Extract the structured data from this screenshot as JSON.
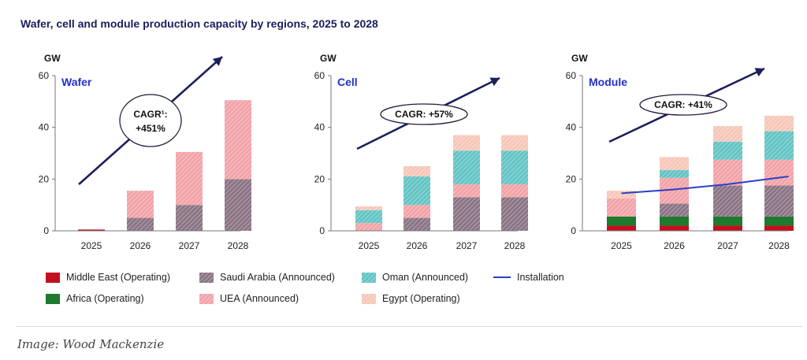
{
  "title": "Wafer, cell and module production capacity by regions, 2025 to 2028",
  "caption": "Image: Wood Mackenzie",
  "legend": [
    {
      "key": "middle_east",
      "label": "Middle East (Operating)"
    },
    {
      "key": "saudi_arabia",
      "label": "Saudi Arabia (Announced)"
    },
    {
      "key": "oman",
      "label": "Oman (Announced)"
    },
    {
      "key": "installation",
      "label": "Installation"
    },
    {
      "key": "africa",
      "label": "Africa (Operating)"
    },
    {
      "key": "uea",
      "label": "UEA (Announced)"
    },
    {
      "key": "egypt",
      "label": "Egypt (Operating)"
    }
  ],
  "colors": {
    "middle_east": "#c40f1e",
    "africa": "#1e7a2e",
    "saudi_arabia": "#8a7384",
    "uea": "#f2a3a8",
    "oman": "#63c4c4",
    "egypt": "#f6c7b8",
    "installation": "#2b3fc9",
    "arrow": "#1a1f5c",
    "title": "#1a1f5c",
    "panel_label": "#2231c8"
  },
  "chart_data": [
    {
      "type": "bar",
      "stacked": true,
      "panel": "Wafer",
      "ylabel": "GW",
      "ylim": [
        0,
        60
      ],
      "yticks": [
        "0",
        "20",
        "40",
        "60"
      ],
      "categories": [
        "2025",
        "2026",
        "2027",
        "2028"
      ],
      "cagr_label_line1": "CAGR¹:",
      "cagr_label_line2": "+451%",
      "series": [
        {
          "key": "middle_east",
          "name": "Middle East (Operating)",
          "values": [
            0.5,
            0,
            0,
            0
          ]
        },
        {
          "key": "africa",
          "name": "Africa (Operating)",
          "values": [
            0,
            0,
            0,
            0
          ]
        },
        {
          "key": "saudi_arabia",
          "name": "Saudi Arabia (Announced)",
          "values": [
            0,
            5,
            10,
            20
          ]
        },
        {
          "key": "uea",
          "name": "UEA (Announced)",
          "values": [
            0,
            10.5,
            20.5,
            30.5
          ]
        },
        {
          "key": "oman",
          "name": "Oman (Announced)",
          "values": [
            0,
            0,
            0,
            0
          ]
        },
        {
          "key": "egypt",
          "name": "Egypt (Operating)",
          "values": [
            0,
            0,
            0,
            0
          ]
        }
      ],
      "installation": null
    },
    {
      "type": "bar",
      "stacked": true,
      "panel": "Cell",
      "ylabel": "GW",
      "ylim": [
        0,
        60
      ],
      "yticks": [
        "0",
        "20",
        "40",
        "60"
      ],
      "categories": [
        "2025",
        "2026",
        "2027",
        "2028"
      ],
      "cagr_label_line1": "CAGR: +57%",
      "cagr_label_line2": "",
      "series": [
        {
          "key": "middle_east",
          "name": "Middle East (Operating)",
          "values": [
            0,
            0,
            0,
            0
          ]
        },
        {
          "key": "africa",
          "name": "Africa (Operating)",
          "values": [
            0,
            0,
            0,
            0
          ]
        },
        {
          "key": "saudi_arabia",
          "name": "Saudi Arabia (Announced)",
          "values": [
            0,
            5,
            13,
            13
          ]
        },
        {
          "key": "uea",
          "name": "UEA (Announced)",
          "values": [
            3,
            5,
            5,
            5
          ]
        },
        {
          "key": "oman",
          "name": "Oman (Announced)",
          "values": [
            5,
            11,
            13,
            13
          ]
        },
        {
          "key": "egypt",
          "name": "Egypt (Operating)",
          "values": [
            1.5,
            4,
            6,
            6
          ]
        }
      ],
      "installation": null
    },
    {
      "type": "bar",
      "stacked": true,
      "panel": "Module",
      "ylabel": "GW",
      "ylim": [
        0,
        60
      ],
      "yticks": [
        "0",
        "20",
        "40",
        "60"
      ],
      "categories": [
        "2025",
        "2026",
        "2027",
        "2028"
      ],
      "cagr_label_line1": "CAGR: +41%",
      "cagr_label_line2": "",
      "series": [
        {
          "key": "middle_east",
          "name": "Middle East (Operating)",
          "values": [
            2,
            2,
            2,
            2
          ]
        },
        {
          "key": "africa",
          "name": "Africa (Operating)",
          "values": [
            3.5,
            3.5,
            3.5,
            3.5
          ]
        },
        {
          "key": "saudi_arabia",
          "name": "Saudi Arabia (Announced)",
          "values": [
            0,
            5,
            12,
            12
          ]
        },
        {
          "key": "uea",
          "name": "UEA (Announced)",
          "values": [
            7,
            10,
            10,
            10
          ]
        },
        {
          "key": "oman",
          "name": "Oman (Announced)",
          "values": [
            0,
            3,
            7,
            11
          ]
        },
        {
          "key": "egypt",
          "name": "Egypt (Operating)",
          "values": [
            3,
            5,
            6,
            6
          ]
        }
      ],
      "installation": {
        "name": "Installation",
        "values": [
          14.5,
          16,
          18,
          21
        ]
      }
    }
  ]
}
